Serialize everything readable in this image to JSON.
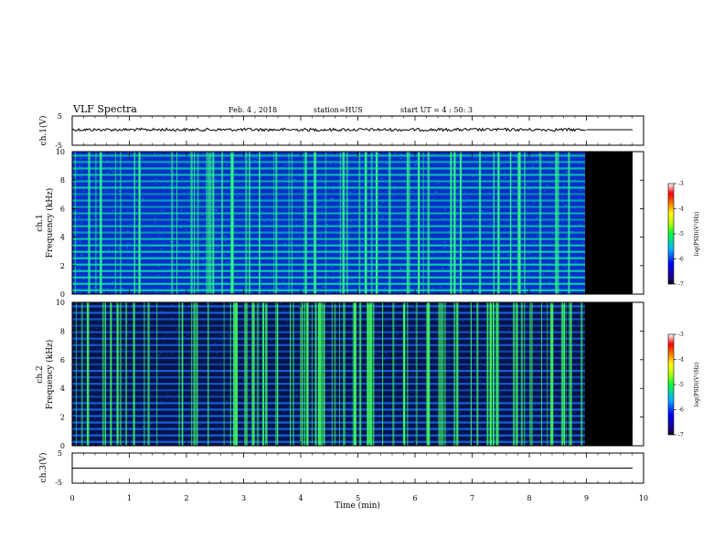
{
  "header": {
    "title": "VLF Spectra",
    "date": "Feb. 4 , 2018",
    "station": "station=HUS",
    "start": "start UT = 4 : 50: 3"
  },
  "chart_data": {
    "type": "heatmap",
    "x_axis": {
      "label": "Time (min)",
      "range": [
        0,
        10
      ],
      "ticks": [
        "0",
        "1",
        "2",
        "3",
        "4",
        "5",
        "6",
        "7",
        "8",
        "9",
        "10"
      ]
    },
    "data_end_min": 9,
    "panels": [
      {
        "id": "ch1-waveform",
        "type": "line",
        "ylabel": "ch.1(V)",
        "ylim": [
          -5,
          5
        ],
        "ticks": [
          "5",
          "-5"
        ],
        "level": 0
      },
      {
        "id": "ch1-spectrogram",
        "type": "heatmap",
        "ylabel_1": "ch.1",
        "ylabel_2": "Frequency (kHz)",
        "ylim": [
          0,
          10
        ],
        "ticks": [
          "0",
          "2",
          "4",
          "6",
          "8",
          "10"
        ]
      },
      {
        "id": "ch2-spectrogram",
        "type": "heatmap",
        "ylabel_1": "ch.2",
        "ylabel_2": "Frequency (kHz)",
        "ylim": [
          0,
          10
        ],
        "ticks": [
          "0",
          "2",
          "4",
          "6",
          "8",
          "10"
        ]
      },
      {
        "id": "ch3-waveform",
        "type": "line",
        "ylabel": "ch.3(V)",
        "ylim": [
          -5,
          5
        ],
        "ticks": [
          "5",
          "-5"
        ],
        "level": 0
      }
    ],
    "colorbar": {
      "label": "log(PSD)(V²/Hz)",
      "range": [
        -7,
        -3
      ],
      "ticks": [
        "-3",
        "-4",
        "-5",
        "-6",
        "-7"
      ]
    }
  }
}
